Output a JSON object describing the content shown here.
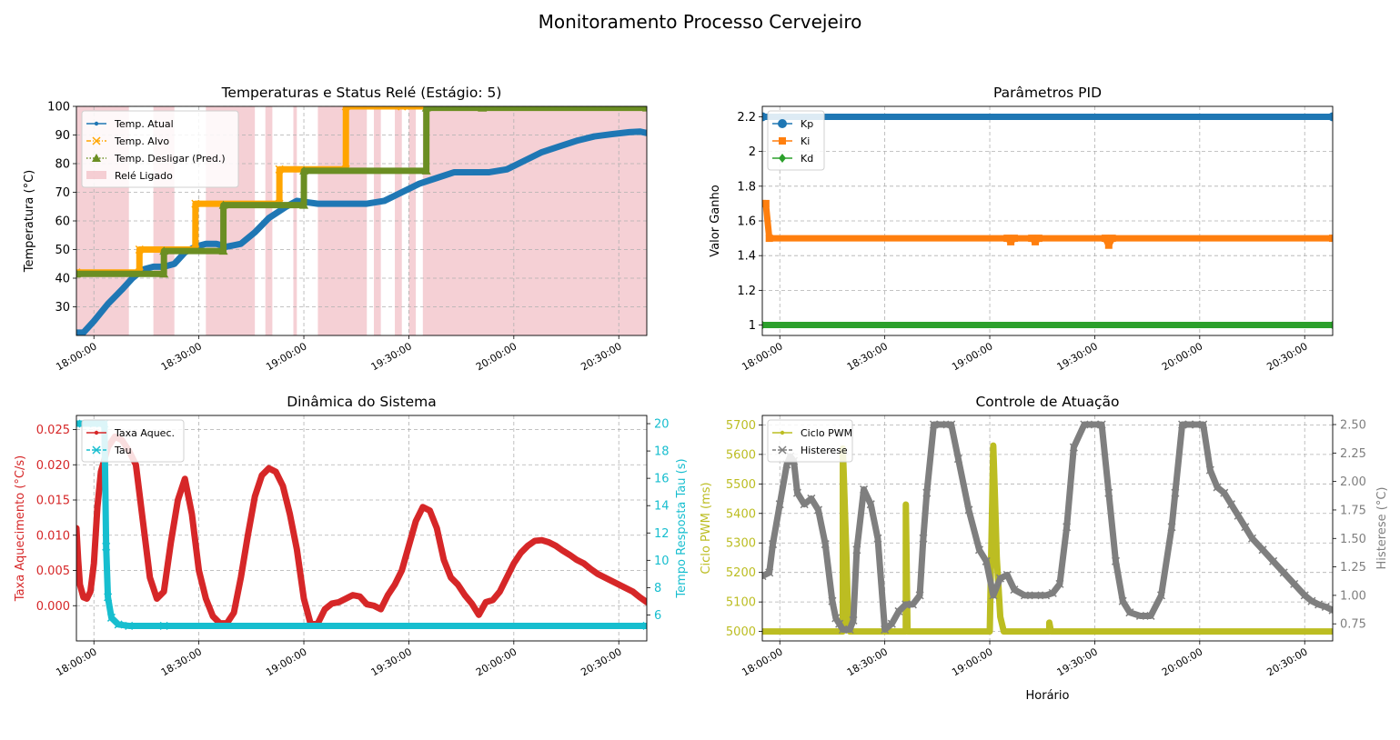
{
  "figure": {
    "suptitle": "Monitoramento Processo Cervejeiro",
    "x_ticks": [
      "18:00:00",
      "18:30:00",
      "19:00:00",
      "19:30:00",
      "20:00:00",
      "20:30:00"
    ],
    "x_label": "Horário"
  },
  "colors": {
    "tab_blue": "#1f77b4",
    "tab_orange": "#ff7f0e",
    "tab_green": "#2ca02c",
    "tab_red": "#d62728",
    "tab_olive": "#bcbd22",
    "tab_cyan": "#17becf",
    "tab_gray": "#7f7f7f",
    "olive_drab": "#6b8e23",
    "orange": "#ffa500",
    "relay_pink": "#f0b7bf"
  },
  "chart_data": [
    {
      "id": "temp",
      "type": "line",
      "title": "Temperaturas e Status Relé (Estágio: 5)",
      "ylabel": "Temperatura (°C)",
      "xlabel": "",
      "xlim": [
        "17:55:00",
        "20:38:00"
      ],
      "ylim": [
        20,
        100
      ],
      "y_ticks": [
        30,
        40,
        50,
        60,
        70,
        80,
        90,
        100
      ],
      "grid": true,
      "legend": "top-left",
      "series": [
        {
          "name": "Temp. Atual",
          "color": "#1f77b4",
          "marker": "dot",
          "x": [
            "17:55:00",
            "17:57:00",
            "18:00:00",
            "18:04:00",
            "18:08:00",
            "18:11:00",
            "18:14:00",
            "18:17:00",
            "18:20:00",
            "18:23:00",
            "18:26:00",
            "18:29:00",
            "18:32:00",
            "18:35:00",
            "18:38:00",
            "18:42:00",
            "18:46:00",
            "18:50:00",
            "18:55:00",
            "18:58:00",
            "19:04:00",
            "19:12:00",
            "19:18:00",
            "19:23:00",
            "19:28:00",
            "19:33:00",
            "19:38:00",
            "19:43:00",
            "19:48:00",
            "19:53:00",
            "19:58:00",
            "20:03:00",
            "20:08:00",
            "20:13:00",
            "20:18:00",
            "20:23:00",
            "20:28:00",
            "20:33:00",
            "20:36:00",
            "20:38:00"
          ],
          "y": [
            21,
            21,
            25,
            31,
            36,
            40,
            43,
            44,
            44,
            45,
            49,
            51,
            52,
            52,
            51,
            52,
            56,
            61,
            65,
            67,
            66,
            66,
            66,
            67,
            70,
            73,
            75,
            77,
            77,
            77,
            78,
            81,
            84,
            86,
            88,
            89.5,
            90.3,
            91,
            91.2,
            90.7
          ]
        },
        {
          "name": "Temp. Alvo",
          "color": "#ffa500",
          "marker": "x",
          "style": "dashdot",
          "x": [
            "17:55:00",
            "18:13:00",
            "18:13:01",
            "18:29:00",
            "18:29:01",
            "18:53:00",
            "18:53:01",
            "19:12:00",
            "19:12:01",
            "19:28:00",
            "19:28:01",
            "20:38:00"
          ],
          "y": [
            42,
            42,
            50,
            50,
            66,
            66,
            78,
            78,
            100,
            100,
            100,
            100
          ]
        },
        {
          "name": "Temp. Desligar (Pred.)",
          "color": "#6b8e23",
          "marker": "triangle",
          "style": "dotted",
          "x": [
            "17:55:00",
            "18:20:00",
            "18:20:01",
            "18:37:00",
            "18:37:01",
            "19:00:00",
            "19:00:01",
            "19:35:00",
            "19:35:01",
            "19:51:00",
            "19:51:01",
            "20:38:00"
          ],
          "y": [
            41.5,
            41.5,
            49.5,
            49.5,
            65.5,
            65.5,
            77.5,
            77.5,
            99.5,
            99.5,
            99.5,
            99.5
          ]
        },
        {
          "name": "Relé Ligado",
          "color": "#f0b7bf",
          "type": "span",
          "spans": [
            [
              "17:55:00",
              "18:10:00"
            ],
            [
              "18:17:00",
              "18:23:00"
            ],
            [
              "18:32:00",
              "18:46:00"
            ],
            [
              "18:49:00",
              "18:51:00"
            ],
            [
              "18:57:00",
              "18:58:00"
            ],
            [
              "19:04:00",
              "19:18:00"
            ],
            [
              "19:20:00",
              "19:22:00"
            ],
            [
              "19:26:00",
              "19:28:00"
            ],
            [
              "19:30:00",
              "19:32:00"
            ],
            [
              "19:34:00",
              "20:38:00"
            ]
          ]
        }
      ]
    },
    {
      "id": "pid",
      "type": "line",
      "title": "Parâmetros PID",
      "ylabel": "Valor Ganho",
      "xlabel": "",
      "xlim": [
        "17:55:00",
        "20:38:00"
      ],
      "ylim": [
        0.94,
        2.26
      ],
      "y_ticks": [
        1.0,
        1.2,
        1.4,
        1.6,
        1.8,
        2.0,
        2.2
      ],
      "grid": true,
      "legend": "top-left",
      "series": [
        {
          "name": "Kp",
          "color": "#1f77b4",
          "marker": "circle",
          "x": [
            "17:55:00",
            "20:38:00"
          ],
          "y": [
            2.2,
            2.2
          ]
        },
        {
          "name": "Ki",
          "color": "#ff7f0e",
          "marker": "square",
          "x": [
            "17:55:00",
            "17:56:00",
            "17:57:00",
            "19:05:00",
            "19:06:00",
            "19:07:00",
            "19:12:00",
            "19:13:00",
            "19:14:00",
            "19:33:00",
            "19:34:00",
            "19:35:00",
            "20:38:00"
          ],
          "y": [
            1.7,
            1.7,
            1.5,
            1.5,
            1.48,
            1.5,
            1.5,
            1.48,
            1.5,
            1.5,
            1.46,
            1.5,
            1.5
          ]
        },
        {
          "name": "Kd",
          "color": "#2ca02c",
          "marker": "diamond",
          "x": [
            "17:55:00",
            "20:38:00"
          ],
          "y": [
            1.0,
            1.0
          ]
        }
      ]
    },
    {
      "id": "dyn",
      "type": "line",
      "title": "Dinâmica do Sistema",
      "ylabel": "Taxa Aquecimento (°C/s)",
      "ylabel2": "Tempo Resposta Tau (s)",
      "xlabel": "",
      "xlim": [
        "17:55:00",
        "20:38:00"
      ],
      "ylim": [
        -0.005,
        0.027
      ],
      "y_ticks": [
        "0.000",
        "0.005",
        "0.010",
        "0.015",
        "0.020",
        "0.025"
      ],
      "ylim2": [
        4.1,
        20.6
      ],
      "y2_ticks": [
        6,
        8,
        10,
        12,
        14,
        16,
        18,
        20
      ],
      "grid": true,
      "legend": "top-left",
      "series": [
        {
          "name": "Taxa Aquec.",
          "color": "#d62728",
          "marker": "dot",
          "axis": "left",
          "x": [
            "17:55:00",
            "17:55:30",
            "17:56:00",
            "17:57:00",
            "17:58:00",
            "17:59:00",
            "18:00:00",
            "18:01:00",
            "18:02:00",
            "18:04:00",
            "18:06:00",
            "18:08:00",
            "18:10:00",
            "18:12:00",
            "18:14:00",
            "18:16:00",
            "18:18:00",
            "18:20:00",
            "18:22:00",
            "18:24:00",
            "18:26:00",
            "18:28:00",
            "18:30:00",
            "18:32:00",
            "18:34:00",
            "18:36:00",
            "18:38:00",
            "18:40:00",
            "18:42:00",
            "18:44:00",
            "18:46:00",
            "18:48:00",
            "18:50:00",
            "18:52:00",
            "18:54:00",
            "18:56:00",
            "18:58:00",
            "19:00:00",
            "19:02:00",
            "19:04:00",
            "19:06:00",
            "19:08:00",
            "19:10:00",
            "19:12:00",
            "19:14:00",
            "19:16:00",
            "19:18:00",
            "19:20:00",
            "19:22:00",
            "19:24:00",
            "19:26:00",
            "19:28:00",
            "19:30:00",
            "19:32:00",
            "19:34:00",
            "19:36:00",
            "19:38:00",
            "19:40:00",
            "19:42:00",
            "19:44:00",
            "19:46:00",
            "19:48:00",
            "19:50:00",
            "19:52:00",
            "19:54:00",
            "19:56:00",
            "19:58:00",
            "20:00:00",
            "20:02:00",
            "20:04:00",
            "20:06:00",
            "20:08:00",
            "20:10:00",
            "20:12:00",
            "20:14:00",
            "20:16:00",
            "20:18:00",
            "20:20:00",
            "20:22:00",
            "20:24:00",
            "20:26:00",
            "20:28:00",
            "20:30:00",
            "20:32:00",
            "20:34:00",
            "20:36:00",
            "20:38:00"
          ],
          "y": [
            0.011,
            0.0065,
            0.003,
            0.0012,
            0.001,
            0.002,
            0.006,
            0.014,
            0.019,
            0.0225,
            0.024,
            0.0235,
            0.022,
            0.02,
            0.012,
            0.004,
            0.001,
            0.002,
            0.009,
            0.015,
            0.018,
            0.013,
            0.005,
            0.001,
            -0.0015,
            -0.0025,
            -0.0025,
            -0.001,
            0.004,
            0.01,
            0.0155,
            0.0185,
            0.0195,
            0.019,
            0.017,
            0.013,
            0.008,
            0.001,
            -0.0027,
            -0.0025,
            -0.0005,
            0.0003,
            0.0005,
            0.001,
            0.0015,
            0.0013,
            0.0002,
            0.0,
            -0.0005,
            0.0015,
            0.003,
            0.005,
            0.0085,
            0.012,
            0.014,
            0.0135,
            0.011,
            0.0065,
            0.004,
            0.003,
            0.0015,
            0.0003,
            -0.0013,
            0.0005,
            0.0008,
            0.002,
            0.004,
            0.006,
            0.0075,
            0.0085,
            0.0092,
            0.0093,
            0.009,
            0.0085,
            0.0078,
            0.0072,
            0.0065,
            0.006,
            0.0052,
            0.0045,
            0.004,
            0.0035,
            0.003,
            0.0025,
            0.002,
            0.0012,
            0.0005
          ]
        },
        {
          "name": "Tau",
          "color": "#17becf",
          "marker": "x",
          "style": "dashed",
          "axis": "right",
          "x": [
            "17:55:00",
            "18:00:00",
            "18:03:00",
            "18:03:30",
            "18:04:00",
            "18:05:00",
            "18:07:00",
            "18:10:00",
            "18:20:00",
            "20:38:00"
          ],
          "y": [
            20,
            20,
            20,
            11,
            7.3,
            5.8,
            5.3,
            5.2,
            5.2,
            5.2
          ]
        }
      ]
    },
    {
      "id": "act",
      "type": "line",
      "title": "Controle de Atuação",
      "ylabel": "Ciclo PWM (ms)",
      "ylabel2": "Histerese (°C)",
      "xlabel": "Horário",
      "xlim": [
        "17:55:00",
        "20:38:00"
      ],
      "ylim": [
        4968,
        5732
      ],
      "y_ticks": [
        5000,
        5100,
        5200,
        5300,
        5400,
        5500,
        5600,
        5700
      ],
      "ylim2": [
        0.6,
        2.58
      ],
      "y2_ticks": [
        "0.75",
        "1.00",
        "1.25",
        "1.50",
        "1.75",
        "2.00",
        "2.25",
        "2.50"
      ],
      "grid": true,
      "legend": "top-left",
      "series": [
        {
          "name": "Ciclo PWM",
          "color": "#bcbd22",
          "marker": "dot",
          "axis": "left",
          "x": [
            "17:55:00",
            "18:18:00",
            "18:18:01",
            "18:18:30",
            "18:19:00",
            "18:19:30",
            "18:20:00",
            "18:36:00",
            "18:36:01",
            "18:36:30",
            "19:00:00",
            "19:01:00",
            "19:01:30",
            "19:02:00",
            "19:03:00",
            "19:04:00",
            "19:17:00",
            "19:17:01",
            "19:17:30",
            "20:38:00"
          ],
          "y": [
            5000,
            5000,
            5620,
            5450,
            5270,
            5050,
            5000,
            5000,
            5430,
            5000,
            5000,
            5630,
            5450,
            5250,
            5050,
            5000,
            5000,
            5030,
            5000,
            5000
          ]
        },
        {
          "name": "Histerese",
          "color": "#7f7f7f",
          "marker": "x",
          "style": "dashed",
          "axis": "right",
          "x": [
            "17:55:00",
            "17:57:00",
            "17:58:00",
            "18:00:00",
            "18:02:00",
            "18:03:00",
            "18:04:00",
            "18:05:00",
            "18:07:00",
            "18:09:00",
            "18:11:00",
            "18:13:00",
            "18:15:00",
            "18:16:00",
            "18:17:00",
            "18:18:00",
            "18:20:00",
            "18:21:00",
            "18:22:00",
            "18:24:00",
            "18:26:00",
            "18:28:00",
            "18:30:00",
            "18:32:00",
            "18:34:00",
            "18:36:00",
            "18:38:00",
            "18:40:00",
            "18:41:00",
            "18:42:00",
            "18:44:00",
            "18:46:00",
            "18:49:00",
            "18:51:00",
            "18:54:00",
            "18:57:00",
            "18:59:00",
            "19:01:00",
            "19:03:00",
            "19:05:00",
            "19:07:00",
            "19:10:00",
            "19:13:00",
            "19:16:00",
            "19:18:00",
            "19:20:00",
            "19:22:00",
            "19:24:00",
            "19:27:00",
            "19:30:00",
            "19:32:00",
            "19:34:00",
            "19:36:00",
            "19:38:00",
            "19:40:00",
            "19:43:00",
            "19:46:00",
            "19:49:00",
            "19:52:00",
            "19:53:00",
            "19:55:00",
            "19:57:00",
            "19:59:00",
            "20:01:00",
            "20:03:00",
            "20:05:00",
            "20:07:00",
            "20:09:00",
            "20:11:00",
            "20:13:00",
            "20:15:00",
            "20:18:00",
            "20:21:00",
            "20:24:00",
            "20:27:00",
            "20:30:00",
            "20:32:00",
            "20:34:00",
            "20:36:00",
            "20:38:00"
          ],
          "y": [
            1.17,
            1.2,
            1.45,
            1.8,
            2.15,
            2.22,
            2.18,
            1.9,
            1.8,
            1.85,
            1.75,
            1.45,
            0.95,
            0.8,
            0.75,
            0.7,
            0.7,
            0.78,
            1.4,
            1.93,
            1.8,
            1.5,
            0.7,
            0.75,
            0.86,
            0.92,
            0.92,
            1.0,
            1.5,
            1.9,
            2.5,
            2.5,
            2.5,
            2.2,
            1.75,
            1.4,
            1.3,
            1.0,
            1.15,
            1.18,
            1.05,
            1.0,
            1.0,
            1.0,
            1.02,
            1.1,
            1.6,
            2.3,
            2.5,
            2.5,
            2.5,
            1.9,
            1.3,
            0.95,
            0.85,
            0.82,
            0.82,
            1.0,
            1.6,
            1.9,
            2.5,
            2.5,
            2.5,
            2.5,
            2.1,
            1.95,
            1.9,
            1.8,
            1.7,
            1.6,
            1.5,
            1.4,
            1.3,
            1.2,
            1.1,
            1.0,
            0.95,
            0.92,
            0.9,
            0.87
          ]
        }
      ]
    }
  ]
}
